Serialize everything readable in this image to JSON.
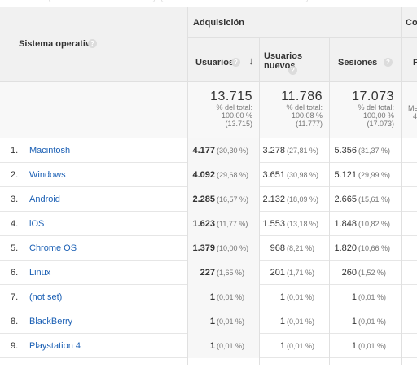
{
  "header": {
    "dimension_label": "Sistema operativo",
    "group_acquisition": "Adquisición",
    "group_next": "Co",
    "col_users": "Usuarios",
    "col_new_users": "Usuarios nuevos",
    "col_sessions": "Sesiones",
    "col_next": "P",
    "help_glyph": "?",
    "sort_glyph": "↓"
  },
  "totals": {
    "users": {
      "value": "13.715",
      "line1": "% del total:",
      "line2": "100,00 %",
      "line3": "(13.715)"
    },
    "new_users": {
      "value": "11.786",
      "line1": "% del total:",
      "line2": "100,08 %",
      "line3": "(11.777)"
    },
    "sessions": {
      "value": "17.073",
      "line1": "% del total:",
      "line2": "100,00 %",
      "line3": "(17.073)"
    },
    "next_partial_1": "Me",
    "next_partial_2": "4"
  },
  "rows": [
    {
      "idx": "1.",
      "name": "Macintosh",
      "users": "4.177",
      "users_pct": "(30,30 %)",
      "new": "3.278",
      "new_pct": "(27,81 %)",
      "sess": "5.356",
      "sess_pct": "(31,37 %)"
    },
    {
      "idx": "2.",
      "name": "Windows",
      "users": "4.092",
      "users_pct": "(29,68 %)",
      "new": "3.651",
      "new_pct": "(30,98 %)",
      "sess": "5.121",
      "sess_pct": "(29,99 %)"
    },
    {
      "idx": "3.",
      "name": "Android",
      "users": "2.285",
      "users_pct": "(16,57 %)",
      "new": "2.132",
      "new_pct": "(18,09 %)",
      "sess": "2.665",
      "sess_pct": "(15,61 %)"
    },
    {
      "idx": "4.",
      "name": "iOS",
      "users": "1.623",
      "users_pct": "(11,77 %)",
      "new": "1.553",
      "new_pct": "(13,18 %)",
      "sess": "1.848",
      "sess_pct": "(10,82 %)"
    },
    {
      "idx": "5.",
      "name": "Chrome OS",
      "users": "1.379",
      "users_pct": "(10,00 %)",
      "new": "968",
      "new_pct": "(8,21 %)",
      "sess": "1.820",
      "sess_pct": "(10,66 %)"
    },
    {
      "idx": "6.",
      "name": "Linux",
      "users": "227",
      "users_pct": "(1,65 %)",
      "new": "201",
      "new_pct": "(1,71 %)",
      "sess": "260",
      "sess_pct": "(1,52 %)"
    },
    {
      "idx": "7.",
      "name": "(not set)",
      "users": "1",
      "users_pct": "(0,01 %)",
      "new": "1",
      "new_pct": "(0,01 %)",
      "sess": "1",
      "sess_pct": "(0,01 %)"
    },
    {
      "idx": "8.",
      "name": "BlackBerry",
      "users": "1",
      "users_pct": "(0,01 %)",
      "new": "1",
      "new_pct": "(0,01 %)",
      "sess": "1",
      "sess_pct": "(0,01 %)"
    },
    {
      "idx": "9.",
      "name": "Playstation 4",
      "users": "1",
      "users_pct": "(0,01 %)",
      "new": "1",
      "new_pct": "(0,01 %)",
      "sess": "1",
      "sess_pct": "(0,01 %)"
    }
  ]
}
